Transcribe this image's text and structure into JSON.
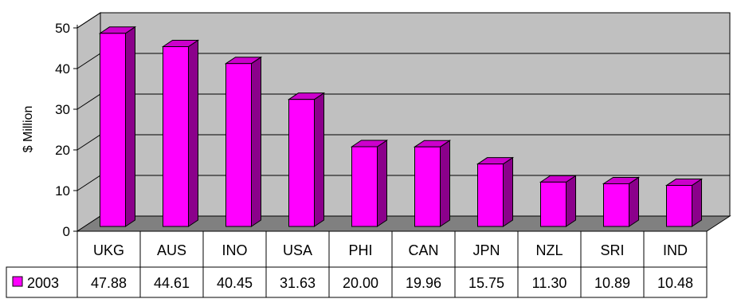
{
  "chart_data": {
    "type": "bar",
    "ylabel": "$ Million",
    "ylim": [
      0,
      50
    ],
    "yticks": [
      0,
      10,
      20,
      30,
      40,
      50
    ],
    "categories": [
      "UKG",
      "AUS",
      "INO",
      "USA",
      "PHI",
      "CAN",
      "JPN",
      "NZL",
      "SRI",
      "IND"
    ],
    "series": [
      {
        "name": "2003",
        "values": [
          47.88,
          44.61,
          40.45,
          31.63,
          20.0,
          19.96,
          15.75,
          11.3,
          10.89,
          10.48
        ],
        "value_labels": [
          "47.88",
          "44.61",
          "40.45",
          "31.63",
          "20.00",
          "19.96",
          "15.75",
          "11.30",
          "10.89",
          "10.48"
        ],
        "color": "#ff00ff",
        "side_color": "#8b008b",
        "top_color": "#cc00cc"
      }
    ],
    "grid": true,
    "legend": "data-table",
    "style": "3d",
    "wall_color": "#c0c0c0",
    "floor_color": "#808080"
  }
}
